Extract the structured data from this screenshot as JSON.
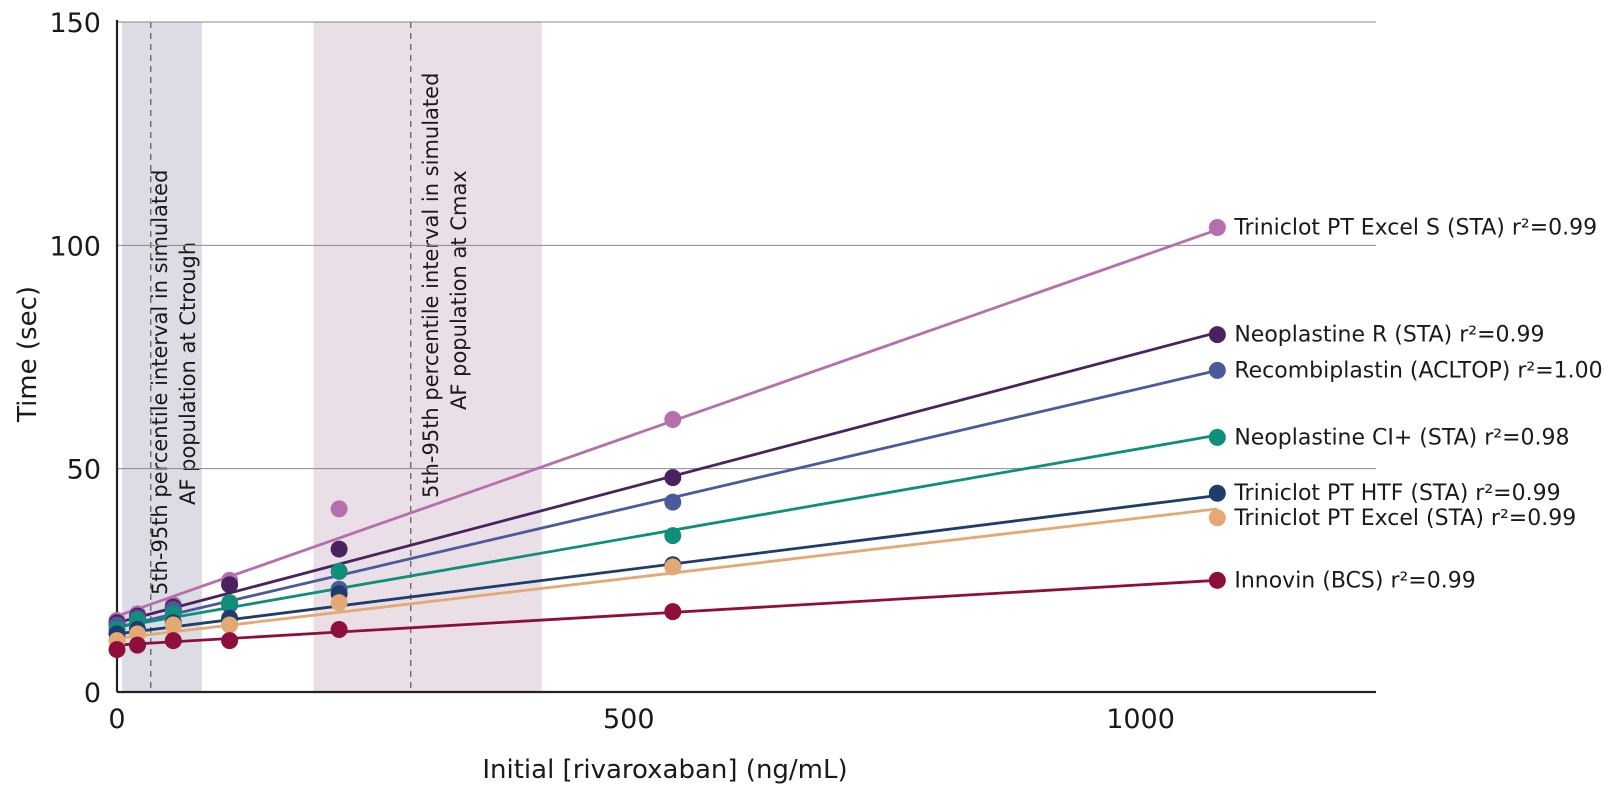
{
  "chart_data": {
    "type": "scatter",
    "title": "",
    "xlabel": "Initial [rivaroxaban] (ng/mL)",
    "ylabel": "Time (sec)",
    "xlim": [
      0,
      1230
    ],
    "ylim": [
      0,
      150
    ],
    "x_ticks": [
      0,
      500,
      1000
    ],
    "y_ticks": [
      0,
      50,
      100,
      150
    ],
    "grid": "horizontal",
    "legend": "inline labels at right end of each fit line",
    "bands": [
      {
        "x_range": [
          5,
          83
        ],
        "median_x": 33,
        "color": "#dcdce4",
        "label_line1": "5th-95th percentile interval in simulated",
        "label_line2": "AF population at Ctrough"
      },
      {
        "x_range": [
          192,
          415
        ],
        "median_x": 287,
        "color": "#eadfe6",
        "label_line1": "5th-95th percentile interval in simulated",
        "label_line2": "AF population at Cmax"
      }
    ],
    "x": [
      0,
      20,
      55,
      110,
      217,
      543,
      1075
    ],
    "series": [
      {
        "name": "Triniclot PT Excel S (STA)",
        "r2_text": "r²=0.99",
        "color": "#b56fad",
        "y": [
          16,
          17.5,
          19.5,
          25,
          41,
          61,
          104
        ],
        "fit": [
          17,
          103.5
        ]
      },
      {
        "name": "Neoplastine R (STA)",
        "r2_text": "r²=0.99",
        "color": "#4a2260",
        "y": [
          15.5,
          17,
          19,
          24,
          32,
          48,
          80
        ],
        "fit": [
          15.5,
          80.5
        ]
      },
      {
        "name": "Recombiplastin (ACLTOP)",
        "r2_text": "r²=1.00",
        "color": "#4b5a9c",
        "y": [
          15,
          16.5,
          18.5,
          19.5,
          23,
          42.5,
          72
        ],
        "fit": [
          14.5,
          72
        ]
      },
      {
        "name": "Neoplastine  CI+ (STA)",
        "r2_text": "r²=0.98",
        "color": "#0f8f7a",
        "y": [
          14,
          16,
          17.5,
          20,
          27,
          35,
          57
        ],
        "fit": [
          14.5,
          57.5
        ]
      },
      {
        "name": "Triniclot PT HTF (STA)",
        "r2_text": "r²=0.99",
        "color": "#1f3d6b",
        "y": [
          13,
          14,
          15.5,
          16.5,
          22,
          28.5,
          44.5
        ],
        "fit": [
          13,
          44
        ]
      },
      {
        "name": "Triniclot PT Excel (STA)",
        "r2_text": "r²=0.99",
        "color": "#e3a873",
        "y": [
          11.5,
          13,
          15,
          15,
          20,
          28,
          39
        ],
        "fit": [
          12,
          41
        ]
      },
      {
        "name": "Innovin (BCS)",
        "r2_text": "r²=0.99",
        "color": "#8e0f3b",
        "y": [
          9.5,
          10.5,
          11.5,
          11.5,
          14,
          18,
          25
        ],
        "fit": [
          10.5,
          25
        ]
      }
    ]
  }
}
